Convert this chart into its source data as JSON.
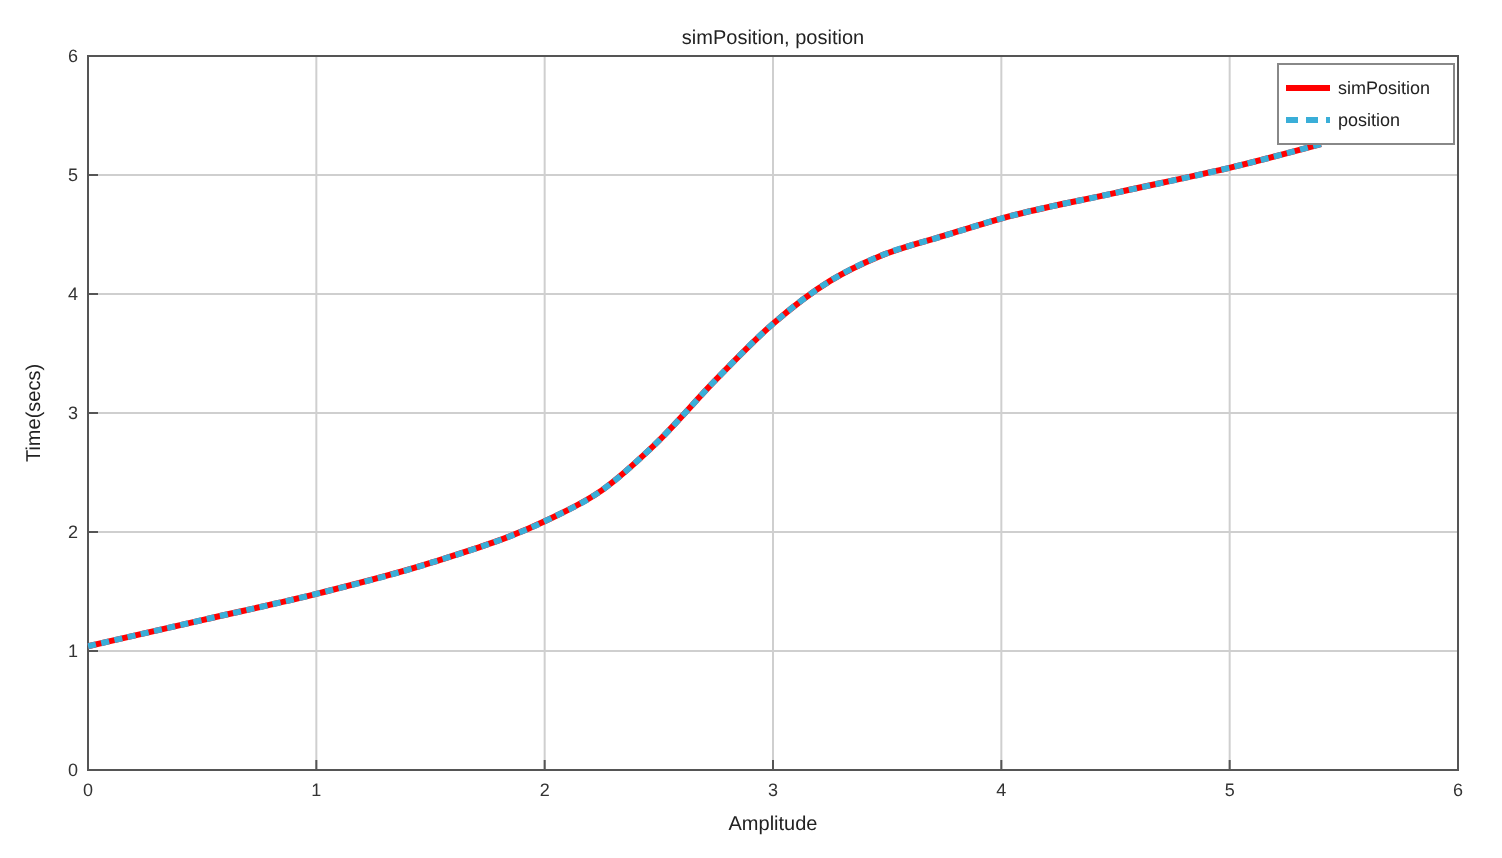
{
  "chart_data": {
    "type": "line",
    "title": "simPosition, position",
    "xlabel": "Amplitude",
    "ylabel": "Time(secs)",
    "x": [
      0,
      0.5,
      1,
      1.5,
      2,
      2.25,
      2.48,
      2.75,
      3,
      3.25,
      3.47,
      3.75,
      4.01,
      4.5,
      5.02,
      5.4
    ],
    "series": [
      {
        "name": "simPosition",
        "color": "#ff0000",
        "line_style": "solid",
        "values": [
          1.04,
          1.26,
          1.48,
          1.74,
          2.09,
          2.35,
          2.73,
          3.28,
          3.75,
          4.11,
          4.32,
          4.49,
          4.64,
          4.85,
          5.07,
          5.26
        ]
      },
      {
        "name": "position",
        "color": "#3aaed8",
        "line_style": "dashed",
        "values": [
          1.04,
          1.26,
          1.48,
          1.74,
          2.09,
          2.35,
          2.73,
          3.28,
          3.75,
          4.11,
          4.32,
          4.49,
          4.64,
          4.85,
          5.07,
          5.26
        ]
      }
    ],
    "xlim": [
      0,
      6
    ],
    "xticks": [
      0,
      1,
      2,
      3,
      4,
      5,
      6
    ],
    "ylim": [
      0,
      6
    ],
    "yticks": [
      0,
      1,
      2,
      3,
      4,
      5,
      6
    ],
    "grid": true,
    "legend": "top right"
  }
}
